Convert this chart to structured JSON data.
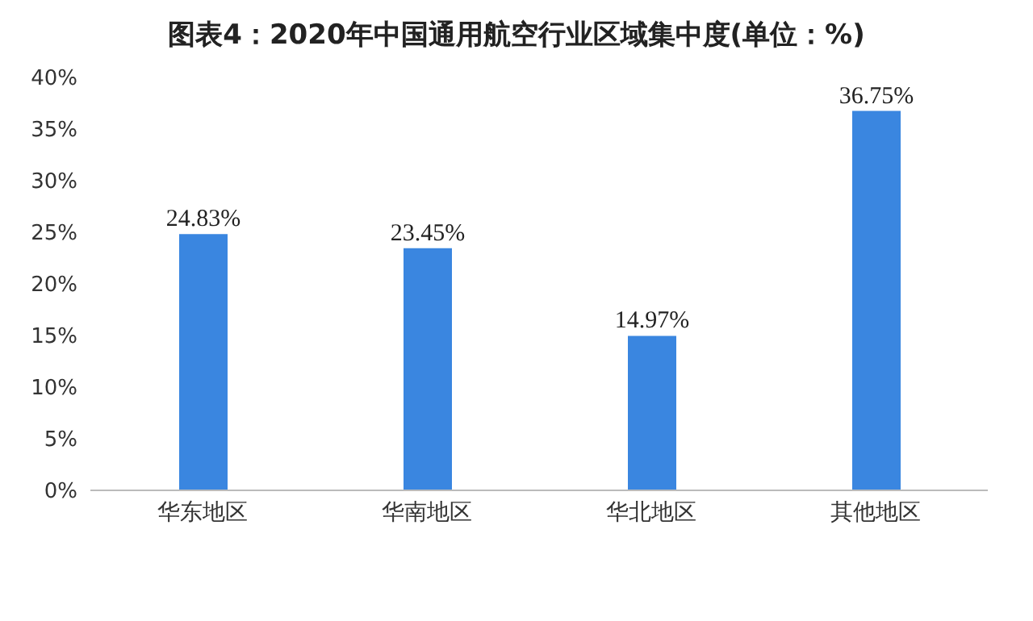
{
  "chart_data": {
    "type": "bar",
    "title": "图表4：2020年中国通用航空行业区域集中度(单位：%)",
    "categories": [
      "华东地区",
      "华南地区",
      "华北地区",
      "其他地区"
    ],
    "values": [
      24.83,
      23.45,
      14.97,
      36.75
    ],
    "value_labels": [
      "24.83%",
      "23.45%",
      "14.97%",
      "36.75%"
    ],
    "color": "#3a86e0",
    "ylim": [
      0,
      40
    ],
    "yticks": [
      {
        "value": 0,
        "label": "0%"
      },
      {
        "value": 5,
        "label": "5%"
      },
      {
        "value": 10,
        "label": "10%"
      },
      {
        "value": 15,
        "label": "15%"
      },
      {
        "value": 20,
        "label": "20%"
      },
      {
        "value": 25,
        "label": "25%"
      },
      {
        "value": 30,
        "label": "30%"
      },
      {
        "value": 35,
        "label": "35%"
      },
      {
        "value": 40,
        "label": "40%"
      }
    ],
    "grid": false
  }
}
